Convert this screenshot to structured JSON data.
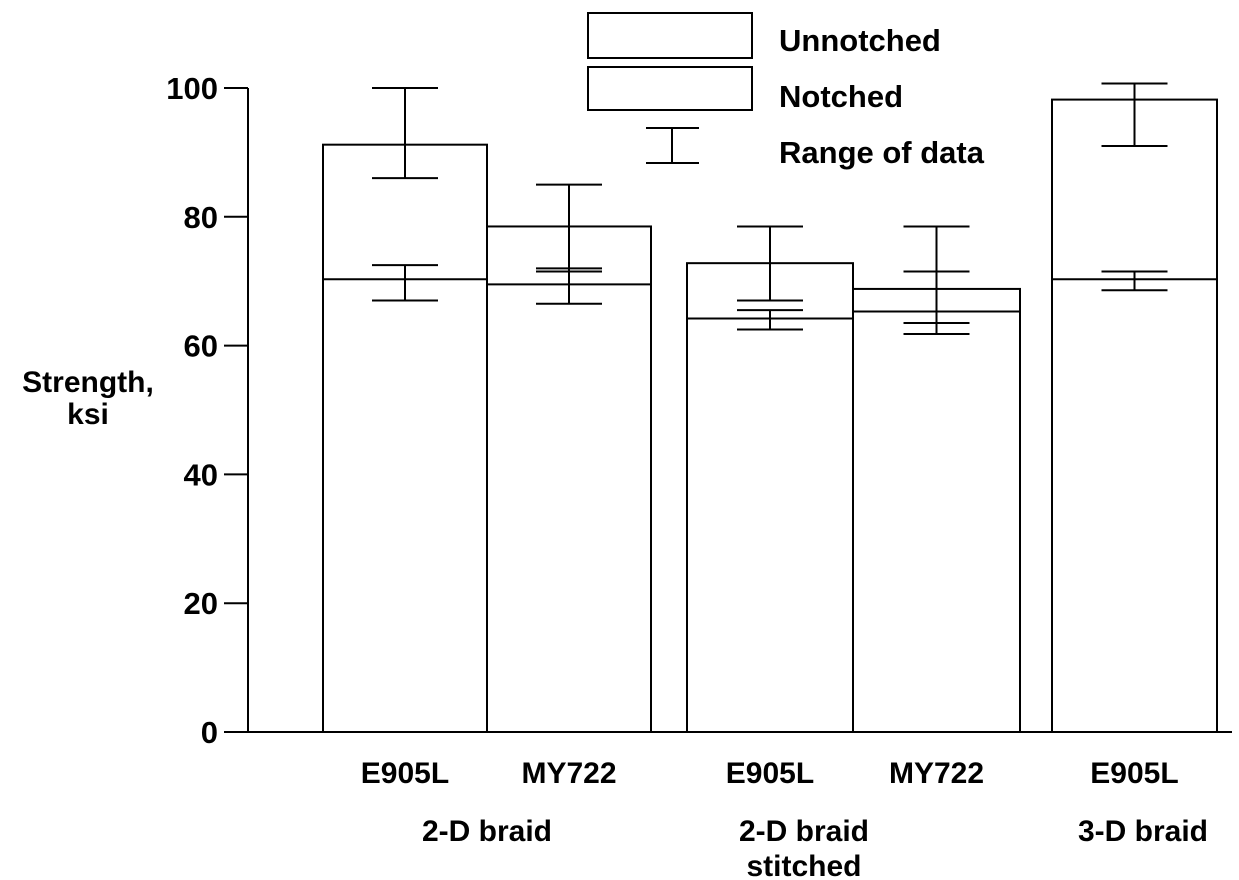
{
  "chart_data": {
    "type": "bar",
    "ylabel_lines": [
      "Strength,",
      "ksi"
    ],
    "ylim": [
      0,
      100
    ],
    "yticks": [
      0,
      20,
      40,
      60,
      80,
      100
    ],
    "legend": {
      "placement": "top-center",
      "entries": [
        "Unnotched",
        "Notched",
        "Range of data"
      ]
    },
    "bars": [
      {
        "label": "E905L",
        "unnotched": 91.2,
        "unnotched_range": [
          86,
          100
        ],
        "notched": 70.3,
        "notched_range": [
          67,
          72.5
        ]
      },
      {
        "label": "MY722",
        "unnotched": 78.5,
        "unnotched_range": [
          71.5,
          85
        ],
        "notched": 69.5,
        "notched_range": [
          66.5,
          72
        ]
      },
      {
        "label": "E905L",
        "unnotched": 72.8,
        "unnotched_range": [
          67,
          78.5
        ],
        "notched": 64.2,
        "notched_range": [
          62.5,
          65.5
        ]
      },
      {
        "label": "MY722",
        "unnotched": 68.8,
        "unnotched_range": [
          63.5,
          78.5
        ],
        "notched": 65.3,
        "notched_range": [
          61.8,
          71.5
        ]
      },
      {
        "label": "E905L",
        "unnotched": 98.2,
        "unnotched_range": [
          91,
          100.7
        ],
        "notched": 70.3,
        "notched_range": [
          68.6,
          71.5
        ]
      }
    ],
    "groups": [
      {
        "lines": [
          "2-D braid"
        ]
      },
      {
        "lines": [
          "2-D braid",
          "stitched"
        ]
      },
      {
        "lines": [
          "3-D braid"
        ]
      }
    ]
  }
}
